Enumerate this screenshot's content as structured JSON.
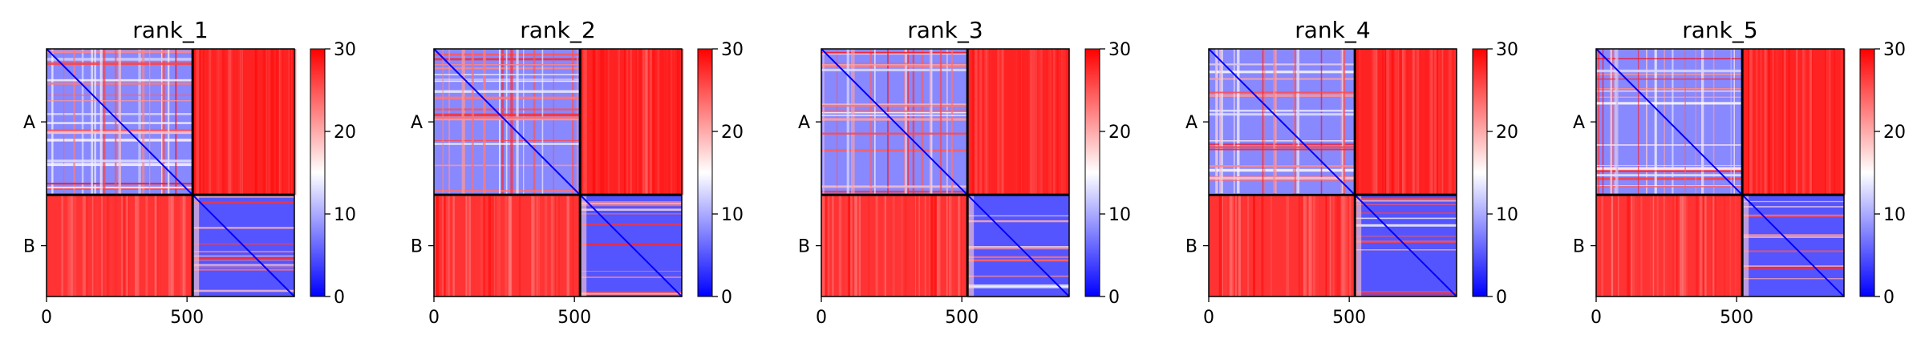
{
  "chart_data": [
    {
      "type": "heatmap",
      "title": "rank_1",
      "colorbar": {
        "range": [
          0,
          30
        ],
        "ticks": [
          "0",
          "10",
          "20",
          "30"
        ],
        "colormap": "bwr"
      },
      "xticks": [
        "0",
        "500"
      ],
      "yticks": [
        "A",
        "B"
      ],
      "xlim": [
        0,
        882
      ],
      "chain_boundary": 520,
      "diagonal_value": 0,
      "intra_chain_value": 5,
      "inter_chain_value": 30
    },
    {
      "type": "heatmap",
      "title": "rank_2",
      "colorbar": {
        "range": [
          0,
          30
        ],
        "ticks": [
          "0",
          "10",
          "20",
          "30"
        ],
        "colormap": "bwr"
      },
      "xticks": [
        "0",
        "500"
      ],
      "yticks": [
        "A",
        "B"
      ],
      "xlim": [
        0,
        882
      ],
      "chain_boundary": 520,
      "diagonal_value": 0,
      "intra_chain_value": 5,
      "inter_chain_value": 30
    },
    {
      "type": "heatmap",
      "title": "rank_3",
      "colorbar": {
        "range": [
          0,
          30
        ],
        "ticks": [
          "0",
          "10",
          "20",
          "30"
        ],
        "colormap": "bwr"
      },
      "xticks": [
        "0",
        "500"
      ],
      "yticks": [
        "A",
        "B"
      ],
      "xlim": [
        0,
        882
      ],
      "chain_boundary": 520,
      "diagonal_value": 0,
      "intra_chain_value": 5,
      "inter_chain_value": 30
    },
    {
      "type": "heatmap",
      "title": "rank_4",
      "colorbar": {
        "range": [
          0,
          30
        ],
        "ticks": [
          "0",
          "10",
          "20",
          "30"
        ],
        "colormap": "bwr"
      },
      "xticks": [
        "0",
        "500"
      ],
      "yticks": [
        "A",
        "B"
      ],
      "xlim": [
        0,
        882
      ],
      "chain_boundary": 520,
      "diagonal_value": 0,
      "intra_chain_value": 5,
      "inter_chain_value": 30
    },
    {
      "type": "heatmap",
      "title": "rank_5",
      "colorbar": {
        "range": [
          0,
          30
        ],
        "ticks": [
          "0",
          "10",
          "20",
          "30"
        ],
        "colormap": "bwr"
      },
      "xticks": [
        "0",
        "500"
      ],
      "yticks": [
        "A",
        "B"
      ],
      "xlim": [
        0,
        882
      ],
      "chain_boundary": 520,
      "diagonal_value": 0,
      "intra_chain_value": 5,
      "inter_chain_value": 30
    }
  ],
  "colors": {
    "low": "#0000ff",
    "mid": "#ffffff",
    "high": "#ff0000",
    "frame": "#000000"
  }
}
